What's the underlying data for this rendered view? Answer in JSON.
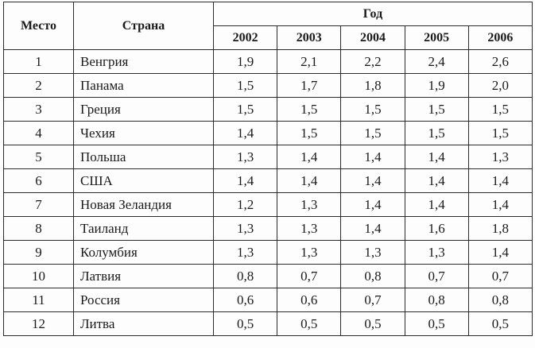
{
  "table": {
    "header": {
      "place": "Место",
      "country": "Страна",
      "year_group": "Год",
      "years": [
        "2002",
        "2003",
        "2004",
        "2005",
        "2006"
      ]
    },
    "rows": [
      {
        "place": "1",
        "country": "Венгрия",
        "values": [
          "1,9",
          "2,1",
          "2,2",
          "2,4",
          "2,6"
        ]
      },
      {
        "place": "2",
        "country": "Панама",
        "values": [
          "1,5",
          "1,7",
          "1,8",
          "1,9",
          "2,0"
        ]
      },
      {
        "place": "3",
        "country": "Греция",
        "values": [
          "1,5",
          "1,5",
          "1,5",
          "1,5",
          "1,5"
        ]
      },
      {
        "place": "4",
        "country": "Чехия",
        "values": [
          "1,4",
          "1,5",
          "1,5",
          "1,5",
          "1,5"
        ]
      },
      {
        "place": "5",
        "country": "Польша",
        "values": [
          "1,3",
          "1,4",
          "1,4",
          "1,4",
          "1,3"
        ]
      },
      {
        "place": "6",
        "country": "США",
        "values": [
          "1,4",
          "1,4",
          "1,4",
          "1,4",
          "1,4"
        ]
      },
      {
        "place": "7",
        "country": "Новая Зеландия",
        "values": [
          "1,2",
          "1,3",
          "1,4",
          "1,4",
          "1,4"
        ]
      },
      {
        "place": "8",
        "country": "Таиланд",
        "values": [
          "1,3",
          "1,3",
          "1,4",
          "1,6",
          "1,8"
        ]
      },
      {
        "place": "9",
        "country": "Колумбия",
        "values": [
          "1,3",
          "1,3",
          "1,3",
          "1,3",
          "1,4"
        ]
      },
      {
        "place": "10",
        "country": "Латвия",
        "values": [
          "0,8",
          "0,7",
          "0,8",
          "0,7",
          "0,7"
        ]
      },
      {
        "place": "11",
        "country": "Россия",
        "values": [
          "0,6",
          "0,6",
          "0,7",
          "0,8",
          "0,8"
        ]
      },
      {
        "place": "12",
        "country": "Литва",
        "values": [
          "0,5",
          "0,5",
          "0,5",
          "0,5",
          "0,5"
        ]
      }
    ]
  }
}
